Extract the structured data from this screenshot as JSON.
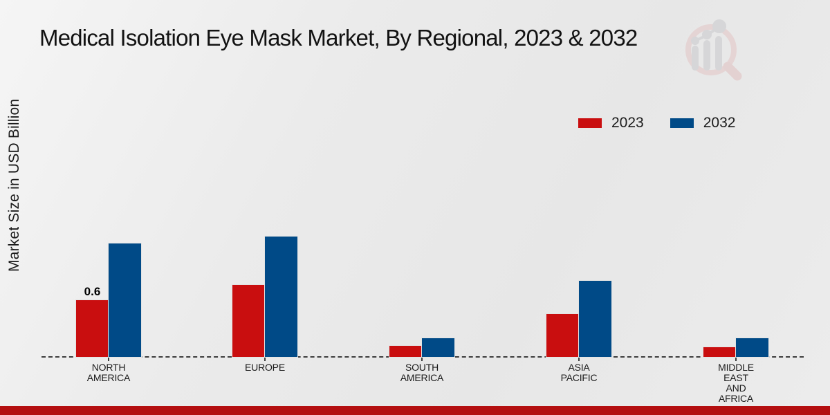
{
  "page": {
    "title": "Medical Isolation Eye Mask Market, By Regional, 2023 & 2032"
  },
  "y_axis": {
    "label": "Market Size in USD Billion"
  },
  "legend": {
    "items": [
      {
        "label": "2023",
        "color": "#c90e0f"
      },
      {
        "label": "2032",
        "color": "#004a87"
      }
    ]
  },
  "chart_data": {
    "type": "bar",
    "title": "Medical Isolation Eye Mask Market, By Regional, 2023 & 2032",
    "xlabel": "",
    "ylabel": "Market Size in USD Billion",
    "categories": [
      "NORTH AMERICA",
      "EUROPE",
      "SOUTH AMERICA",
      "ASIA PACIFIC",
      "MIDDLE EAST AND AFRICA"
    ],
    "category_lines": [
      [
        "NORTH",
        "AMERICA"
      ],
      [
        "EUROPE"
      ],
      [
        "SOUTH",
        "AMERICA"
      ],
      [
        "ASIA",
        "PACIFIC"
      ],
      [
        "MIDDLE",
        "EAST",
        "AND",
        "AFRICA"
      ]
    ],
    "series": [
      {
        "name": "2023",
        "color": "#c90e0f",
        "values": [
          0.6,
          0.76,
          0.12,
          0.45,
          0.1
        ]
      },
      {
        "name": "2032",
        "color": "#004a87",
        "values": [
          1.2,
          1.27,
          0.2,
          0.8,
          0.2
        ]
      }
    ],
    "data_labels": [
      {
        "category": "NORTH AMERICA",
        "series": "2023",
        "text": "0.6"
      }
    ],
    "ylim": [
      0,
      1.4
    ],
    "y_ticks_visible": false,
    "grid": false,
    "baseline_style": "dashed",
    "legend_position": "top-right",
    "units": "USD Billion"
  },
  "watermark": {
    "name": "market-research-future-logo"
  },
  "colors": {
    "series_2023": "#c90e0f",
    "series_2032": "#004a87",
    "footer_band": "#b40f10",
    "baseline": "#3c3c3c",
    "background": "#e9e9e9",
    "watermark_pink": "#e3c5c5",
    "watermark_gray": "#c8c8cc"
  }
}
